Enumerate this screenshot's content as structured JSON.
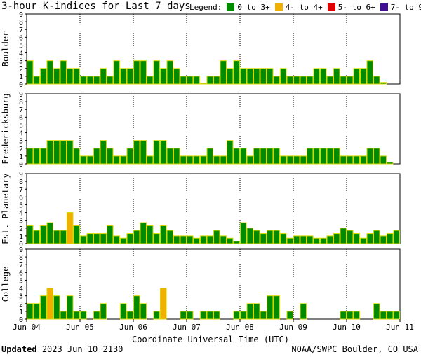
{
  "title": "3-hour K-indices for Last 7 days",
  "legend": {
    "label": "Legend:",
    "items": [
      {
        "label": "0 to 3+",
        "color": "#008c00"
      },
      {
        "label": "4- to 4+",
        "color": "#f0b000"
      },
      {
        "label": "5- to 6+",
        "color": "#e00000"
      },
      {
        "label": "7- to 9",
        "color": "#401090"
      }
    ]
  },
  "footer": {
    "updated_label": "Updated",
    "updated_value": "2023 Jun 10 2130",
    "credit": "NOAA/SWPC Boulder, CO USA"
  },
  "chart_data": {
    "type": "bar",
    "xlabel": "Coordinate Universal Time (UTC)",
    "x_ticks": [
      "Jun 04",
      "Jun 05",
      "Jun 06",
      "Jun 07",
      "Jun 08",
      "Jun 09",
      "Jun 10",
      "Jun 11"
    ],
    "y_ticks": [
      0,
      1,
      2,
      3,
      4,
      5,
      6,
      7,
      8,
      9
    ],
    "ylim": [
      0,
      9
    ],
    "thresholds": {
      "quiet_max_below": 4,
      "active_max_below": 5,
      "storm_max_below": 7
    },
    "panels": [
      {
        "name": "Boulder",
        "values": [
          3,
          1,
          2,
          3,
          2,
          3,
          2,
          2,
          1,
          1,
          1,
          2,
          1,
          3,
          2,
          2,
          3,
          3,
          1,
          3,
          2,
          3,
          2,
          1,
          1,
          1,
          0.1,
          1,
          1,
          3,
          2,
          3,
          2,
          2,
          2,
          2,
          2,
          1,
          2,
          1,
          1,
          1,
          1,
          2,
          2,
          1,
          2,
          1,
          1,
          2,
          2,
          3,
          1,
          0.2
        ]
      },
      {
        "name": "Fredericksburg",
        "values": [
          2,
          2,
          2,
          3,
          3,
          3,
          3,
          2,
          1,
          1,
          2,
          3,
          2,
          1,
          1,
          2,
          3,
          3,
          1,
          3,
          3,
          2,
          2,
          1,
          1,
          1,
          1,
          2,
          1,
          1,
          3,
          2,
          2,
          1,
          2,
          2,
          2,
          2,
          1,
          1,
          1,
          1,
          2,
          2,
          2,
          2,
          2,
          1,
          1,
          1,
          1,
          2,
          2,
          1,
          0.2
        ]
      },
      {
        "name": "Est. Planetary",
        "values": [
          2.3,
          1.7,
          2.3,
          2.7,
          1.7,
          1.7,
          4,
          2.3,
          1,
          1.3,
          1.3,
          1.3,
          2.3,
          1,
          0.7,
          1.3,
          1.7,
          2.7,
          2.3,
          1.3,
          2.3,
          1.7,
          1,
          1,
          1,
          0.7,
          1,
          1,
          1.7,
          1,
          0.7,
          0.3,
          2.7,
          2,
          1.7,
          1.3,
          1.7,
          1.7,
          1.3,
          0.7,
          1,
          1,
          1,
          0.7,
          0.7,
          1,
          1.3,
          2,
          1.7,
          1.3,
          0.7,
          1.3,
          1.7,
          1,
          1.3,
          1.7
        ]
      },
      {
        "name": "College",
        "values": [
          2,
          2,
          3,
          4,
          3,
          1,
          3,
          1,
          1,
          0,
          1,
          2,
          0,
          0,
          2,
          1,
          3,
          2,
          0,
          1,
          4,
          0,
          0,
          1,
          1,
          0,
          1,
          1,
          1,
          0,
          0,
          1,
          1,
          2,
          2,
          1,
          3,
          3,
          0,
          1,
          0,
          2,
          0,
          0,
          0,
          0,
          0,
          1,
          1,
          1,
          0,
          0,
          2,
          1,
          1,
          1,
          0
        ]
      }
    ]
  }
}
